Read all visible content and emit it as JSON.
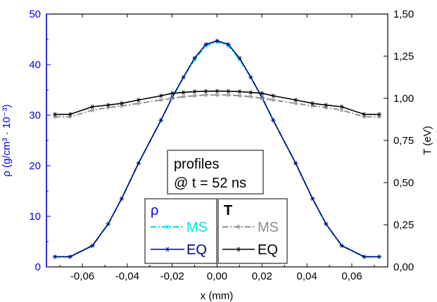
{
  "chart_data": {
    "type": "line",
    "xlabel": "x (mm)",
    "ylabel_left": "ρ (g/cm³ · 10⁻³)",
    "ylabel_right": "T (eV)",
    "xlim": [
      -0.076,
      0.076
    ],
    "ylim_left": [
      0,
      50
    ],
    "ylim_right": [
      0,
      1.5
    ],
    "x_ticks": [
      -0.06,
      -0.04,
      -0.02,
      0.0,
      0.02,
      0.04,
      0.06
    ],
    "x_tick_labels": [
      "-0,06",
      "-0,04",
      "-0,02",
      "0,00",
      "0,02",
      "0,04",
      "0,06"
    ],
    "y_left_ticks": [
      0,
      10,
      20,
      30,
      40,
      50
    ],
    "y_left_tick_labels": [
      "0",
      "10",
      "20",
      "30",
      "40",
      "50"
    ],
    "y_right_ticks": [
      0,
      0.25,
      0.5,
      0.75,
      1.0,
      1.25,
      1.5
    ],
    "y_right_tick_labels": [
      "0,00",
      "0,25",
      "0,50",
      "0,75",
      "1,00",
      "1,25",
      "1,50"
    ],
    "annotation": {
      "line1": "profiles",
      "line2": "@ t = 52 ns"
    },
    "legend": {
      "rho": {
        "title": "ρ",
        "entries": [
          "MS",
          "EQ"
        ]
      },
      "T": {
        "title": "T",
        "entries": [
          "MS",
          "EQ"
        ]
      }
    },
    "colors": {
      "left_axis": "#0000dd",
      "rho_MS": "#00e5ee",
      "rho_EQ": "#000080",
      "T_MS": "#909090",
      "T_EQ": "#000000"
    },
    "x": [
      -0.0722,
      -0.0655,
      -0.0555,
      -0.0485,
      -0.0425,
      -0.035,
      -0.025,
      -0.02,
      -0.015,
      -0.01,
      -0.005,
      0.0,
      0.005,
      0.01,
      0.015,
      0.02,
      0.025,
      0.035,
      0.0425,
      0.0485,
      0.0555,
      0.0655,
      0.0722
    ],
    "series": [
      {
        "name": "MS",
        "group": "ρ",
        "axis": "left",
        "values": [
          2.0,
          2.0,
          4.2,
          8.5,
          13.5,
          20.5,
          29.0,
          33.5,
          37.5,
          41.0,
          43.7,
          44.5,
          43.7,
          41.0,
          37.5,
          33.5,
          29.0,
          20.5,
          13.5,
          8.5,
          4.2,
          2.0,
          2.0
        ]
      },
      {
        "name": "EQ",
        "group": "ρ",
        "axis": "left",
        "values": [
          2.0,
          2.0,
          4.2,
          8.5,
          13.5,
          20.5,
          29.0,
          33.5,
          37.5,
          41.3,
          44.0,
          44.7,
          44.0,
          41.3,
          37.5,
          33.5,
          29.0,
          20.5,
          13.5,
          8.5,
          4.2,
          2.0,
          2.0
        ]
      },
      {
        "name": "MS",
        "group": "T",
        "axis": "right",
        "values": [
          0.89,
          0.89,
          0.93,
          0.945,
          0.955,
          0.97,
          0.99,
          1.0,
          1.01,
          1.015,
          1.02,
          1.02,
          1.02,
          1.015,
          1.01,
          1.0,
          0.99,
          0.97,
          0.955,
          0.945,
          0.93,
          0.89,
          0.89
        ]
      },
      {
        "name": "EQ",
        "group": "T",
        "axis": "right",
        "values": [
          0.905,
          0.905,
          0.95,
          0.96,
          0.97,
          0.99,
          1.015,
          1.03,
          1.035,
          1.04,
          1.042,
          1.043,
          1.042,
          1.04,
          1.035,
          1.03,
          1.015,
          0.99,
          0.97,
          0.96,
          0.95,
          0.905,
          0.905
        ]
      }
    ]
  }
}
